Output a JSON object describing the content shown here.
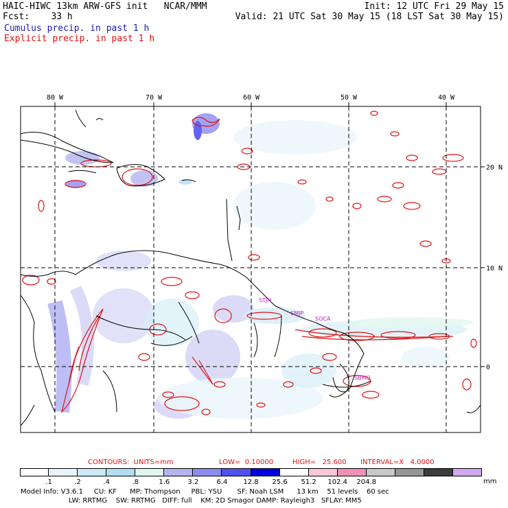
{
  "header": {
    "title": "HAIC-HIWC 13km ARW-GFS init   NCAR/MMM",
    "init": "Init: 12 UTC Fri 29 May 15",
    "fcst_label": "Fcst:    33 h",
    "valid": "Valid: 21 UTC Sat 30 May 15 (18 LST Sat 30 May 15)",
    "cumulus_label": "Cumulus precip. in past 1 h",
    "explicit_label": "Explicit precip. in past 1 h"
  },
  "axes": {
    "lon_labels": [
      "80 W",
      "70 W",
      "60 W",
      "50 W",
      "40 W"
    ],
    "lat_labels": [
      "20 N",
      "10 N",
      "0"
    ]
  },
  "stations": [
    "STJH",
    "SMJP",
    "SOCA",
    "SBMQ"
  ],
  "contours": {
    "title": "CONTOURS:  UNITS=mm",
    "low": "LOW=  0.10000",
    "high": "HIGH=   25.600",
    "interval": "INTERVAL=X   4.0000"
  },
  "colorbar": {
    "colors": [
      "#ffffff",
      "#e8f4fb",
      "#cde9f6",
      "#b3ddf0",
      "#e0f6f0",
      "#b4b4f0",
      "#8c8cf0",
      "#5050f5",
      "#0000dc",
      "#ffffff",
      "#fbc8d8",
      "#f090b4",
      "#c8c8c8",
      "#969696",
      "#3c3c3c",
      "#d2a8f0"
    ],
    "ticks": [
      ".1",
      ".2",
      ".4",
      ".8",
      "1.6",
      "3.2",
      "6.4",
      "12.8",
      "25.6",
      "51.2",
      "102.4",
      "204.8"
    ],
    "unit": "mm"
  },
  "footer": {
    "line1": "Model Info: V3.6.1     CU: KF      MP: Thompson     PBL: YSU       SF: Noah LSM      13 km    51 levels    60 sec",
    "line2": "                      LW: RRTMG    SW: RRTMG   DIFF: full    KM: 2D Smagor DAMP: Rayleigh3   SFLAY: MM5"
  }
}
